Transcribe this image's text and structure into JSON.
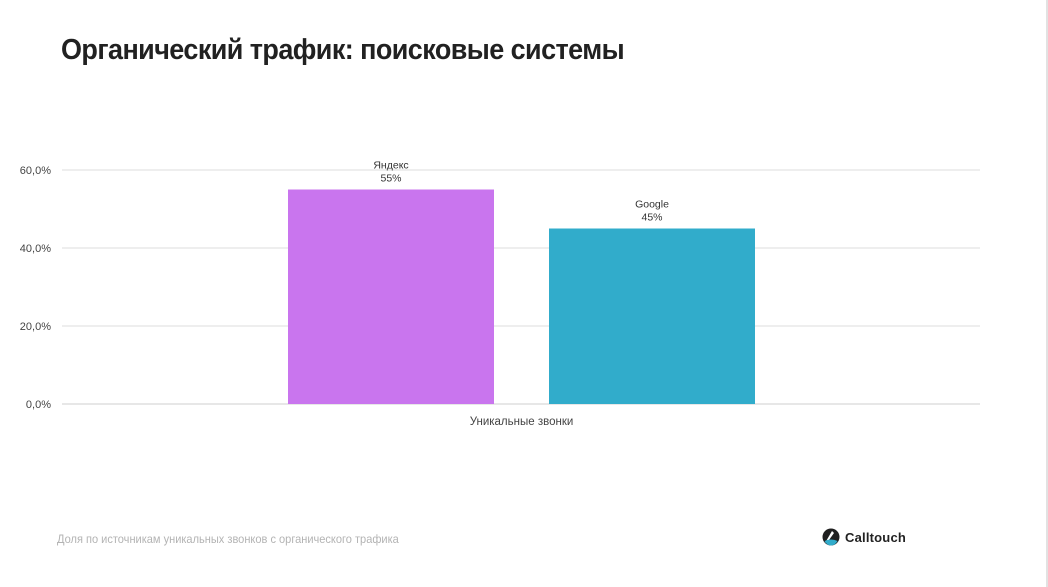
{
  "slide": {
    "title": "Органический трафик: поисковые системы",
    "footnote": "Доля по источникам уникальных звонков с органического трафика",
    "logo_text": "Calltouch"
  },
  "chart_data": {
    "type": "bar",
    "categories": [
      "Уникальные звонки"
    ],
    "series": [
      {
        "name": "Яндекс",
        "values": [
          55
        ],
        "label": "55%",
        "color": "#c975ee"
      },
      {
        "name": "Google",
        "values": [
          45
        ],
        "label": "45%",
        "color": "#31accb"
      }
    ],
    "ylim": [
      0,
      60
    ],
    "yticks": [
      {
        "value": 0,
        "label": "0,0%"
      },
      {
        "value": 20,
        "label": "20,0%"
      },
      {
        "value": 40,
        "label": "40,0%"
      },
      {
        "value": 60,
        "label": "60,0%"
      }
    ],
    "grid": true,
    "legend": "none"
  }
}
